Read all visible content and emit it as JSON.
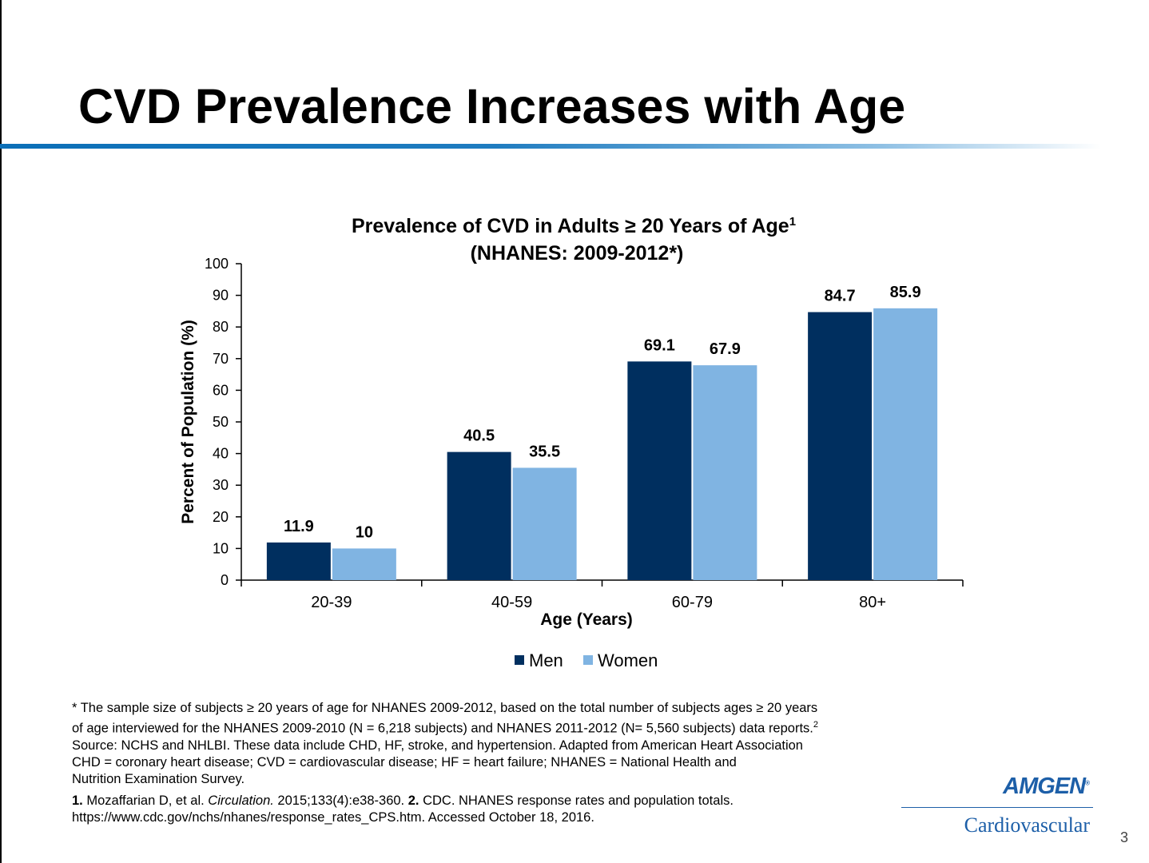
{
  "slide": {
    "title": "CVD Prevalence Increases with Age",
    "page_number": "3"
  },
  "chart_data": {
    "type": "bar",
    "title": "Prevalence of CVD in Adults ≥ 20 Years of Age",
    "title_superscript": "1",
    "subtitle": "(NHANES: 2009-2012*)",
    "xlabel": "Age (Years)",
    "ylabel": "Percent of Population (%)",
    "categories": [
      "20-39",
      "40-59",
      "60-79",
      "80+"
    ],
    "series": [
      {
        "name": "Men",
        "values": [
          11.9,
          40.5,
          69.1,
          84.7
        ],
        "labels": [
          "11.9",
          "40.5",
          "69.1",
          "84.7"
        ],
        "color": "#002f5f"
      },
      {
        "name": "Women",
        "values": [
          10,
          35.5,
          67.9,
          85.9
        ],
        "labels": [
          "10",
          "35.5",
          "67.9",
          "85.9"
        ],
        "color": "#80b4e2"
      }
    ],
    "ylim": [
      0,
      100
    ],
    "yticks": [
      0,
      10,
      20,
      30,
      40,
      50,
      60,
      70,
      80,
      90,
      100
    ],
    "grid": false,
    "legend": "bottom"
  },
  "footnote": {
    "line1": "* The sample size of subjects ≥ 20 years of age for NHANES 2009-2012, based on the total number of subjects ages ≥ 20 years",
    "line2": "of age interviewed for the NHANES 2009-2010 (N = 6,218 subjects) and NHANES 2011-2012 (N= 5,560 subjects) data reports.",
    "line2_sup": "2",
    "line3": "Source: NCHS and NHLBI. These data include CHD, HF, stroke, and hypertension. Adapted from American Heart Association",
    "line4": "CHD = coronary heart disease; CVD = cardiovascular disease; HF = heart failure; NHANES = National Health and",
    "line5": "Nutrition Examination Survey.",
    "ref1_num": "1.",
    "ref1_text": " Mozaffarian D, et al. ",
    "ref1_journal": "Circulation.",
    "ref1_rest": " 2015;133(4):e38-360. ",
    "ref2_num": "2.",
    "ref2_text": " CDC. NHANES response rates and population totals.",
    "ref2_url": "https://www.cdc.gov/nchs/nhanes/response_rates_CPS.htm. Accessed October 18, 2016."
  },
  "logo": {
    "wordmark": "AMGEN",
    "trademark": "®",
    "division": "Cardiovascular",
    "color": "#1d5fa8"
  }
}
